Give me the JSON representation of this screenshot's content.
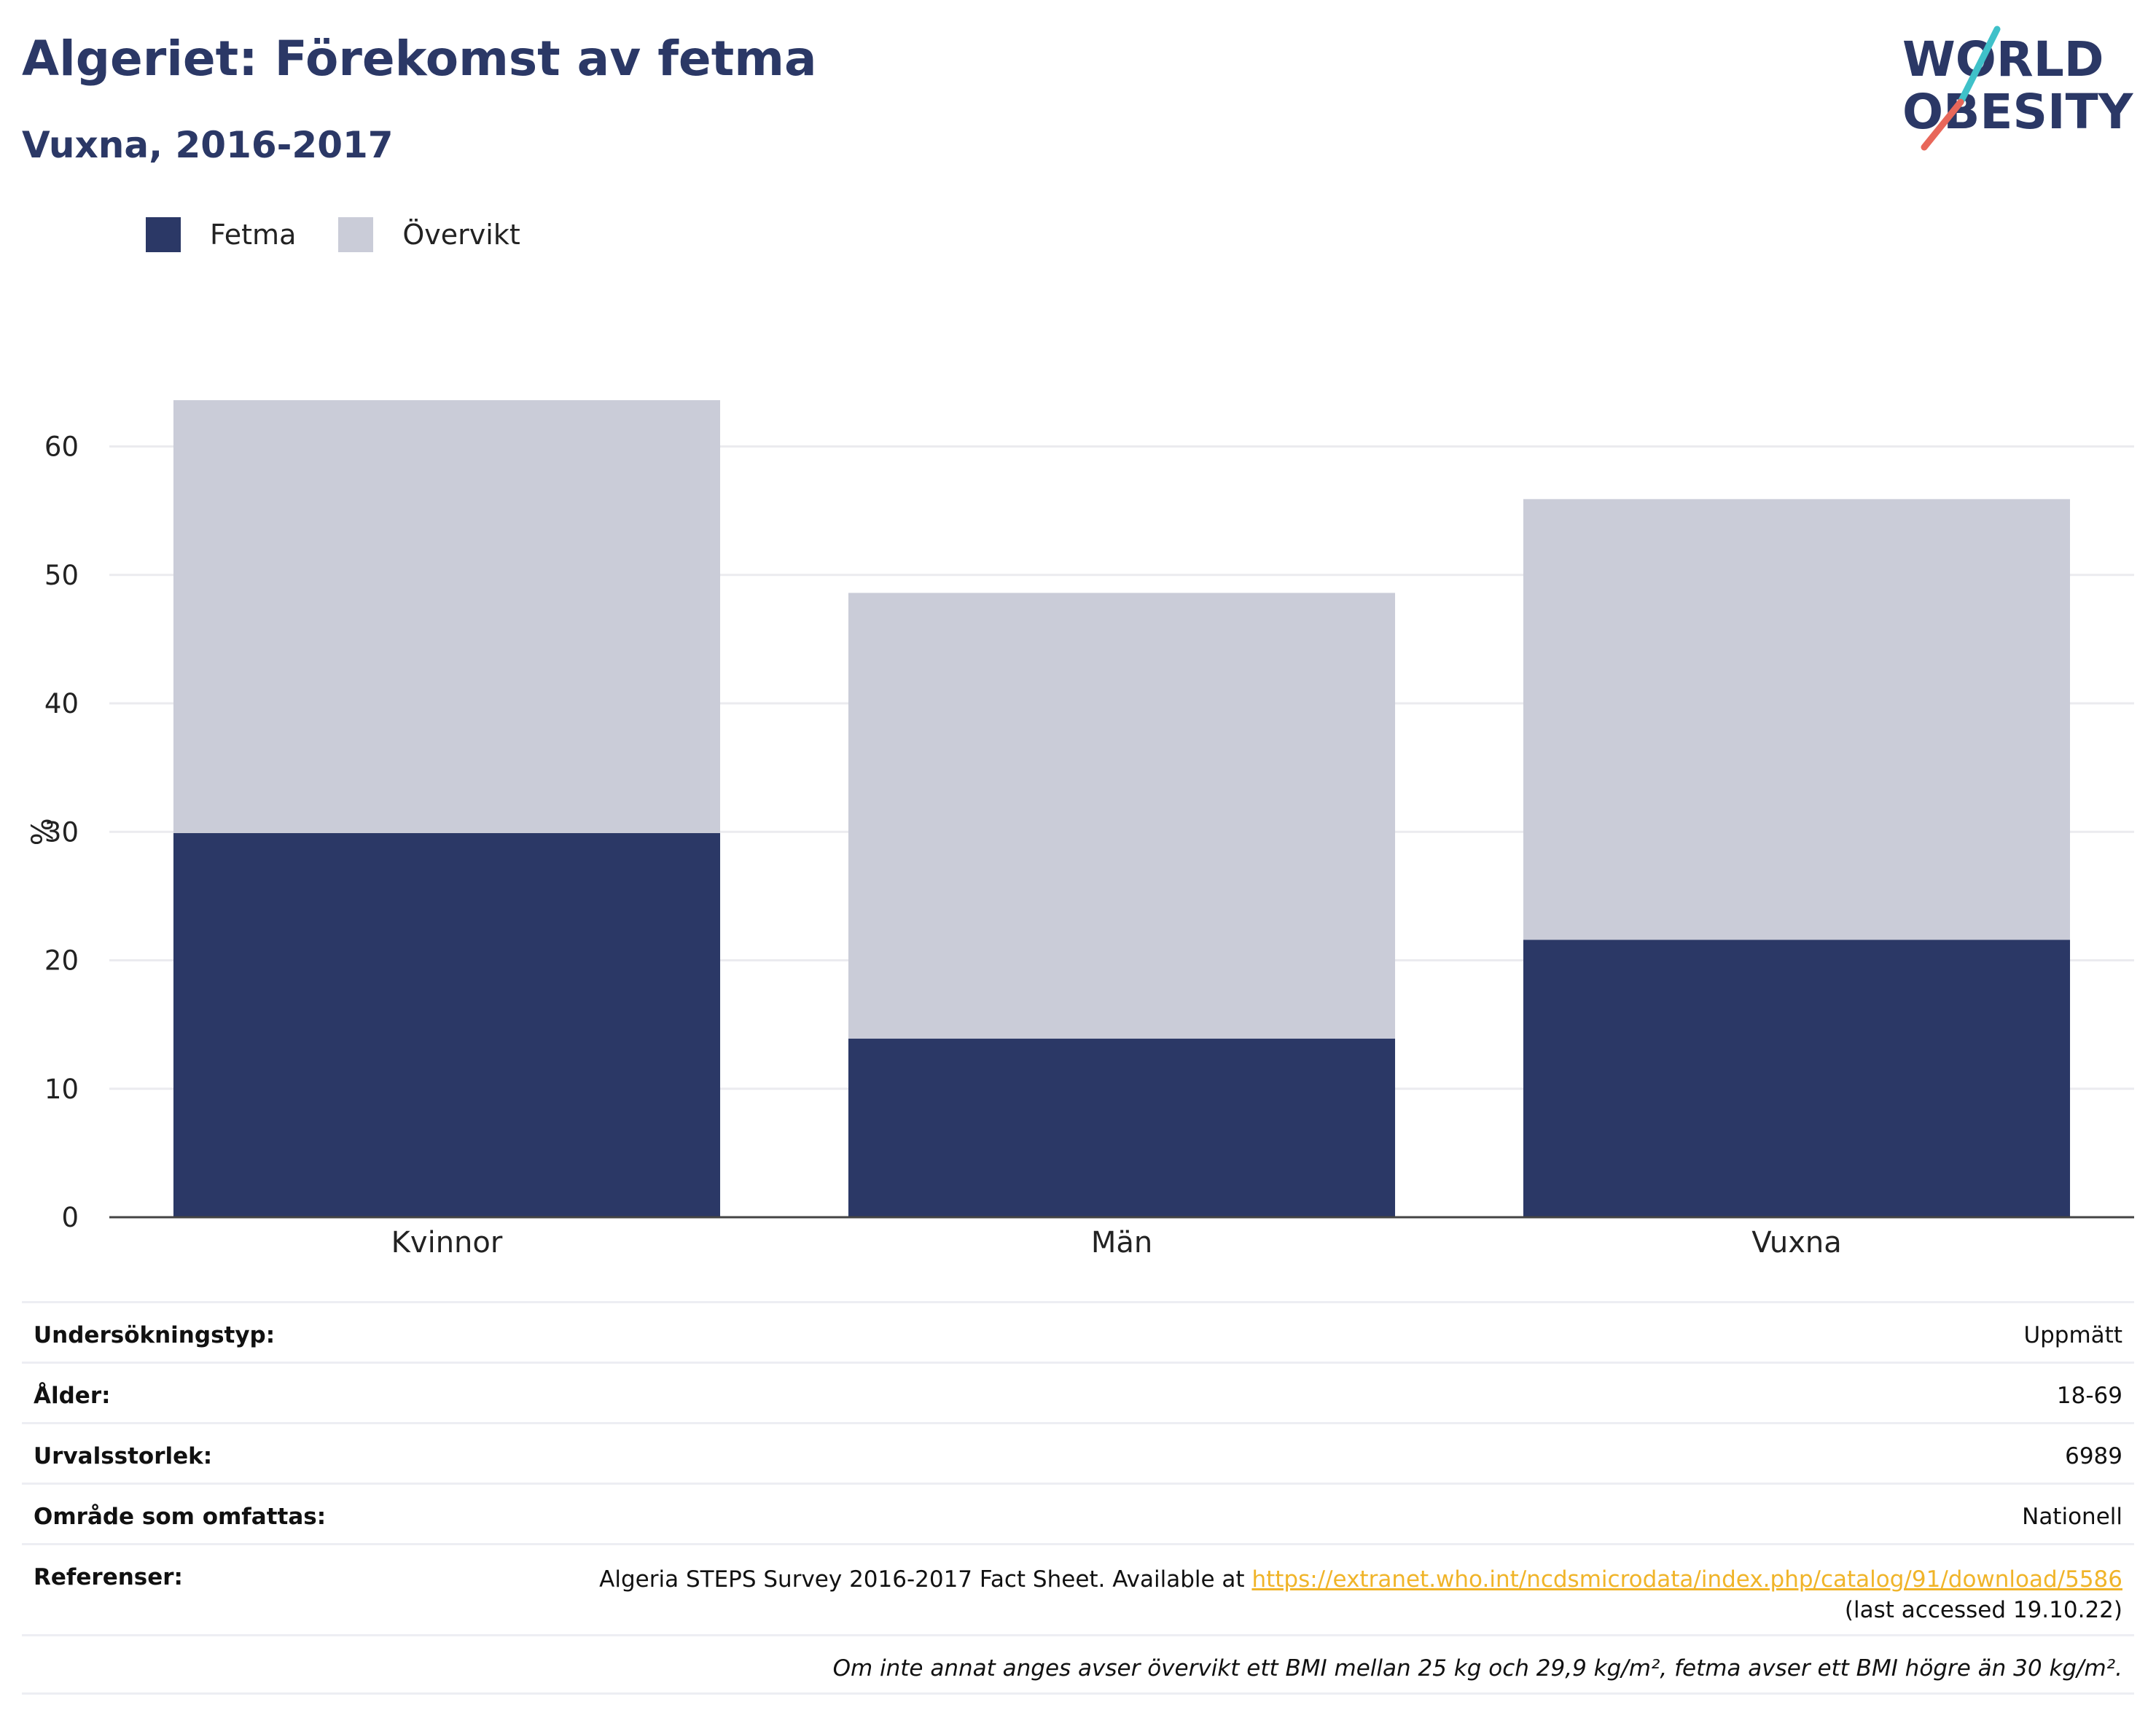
{
  "header": {
    "title": "Algeriet: Förekomst av fetma",
    "subtitle": "Vuxna, 2016-2017"
  },
  "logo": {
    "line1": "WORLD",
    "line2": "OBESITY",
    "slash_colors": [
      "#3fc1c9",
      "#e8675a"
    ]
  },
  "legend": {
    "items": [
      {
        "label": "Fetma",
        "color": "#2b3866"
      },
      {
        "label": "Övervikt",
        "color": "#caccd8"
      }
    ]
  },
  "chart_data": {
    "type": "bar",
    "stacked": true,
    "categories": [
      "Kvinnor",
      "Män",
      "Vuxna"
    ],
    "series": [
      {
        "name": "Fetma",
        "color": "#2b3866",
        "values": [
          29.9,
          13.9,
          21.6
        ]
      },
      {
        "name": "Övervikt",
        "color": "#caccd8",
        "values": [
          33.7,
          34.7,
          34.3
        ]
      }
    ],
    "ylabel": "%",
    "xlabel": "",
    "ylim": [
      0,
      64
    ],
    "yticks": [
      0,
      10,
      20,
      30,
      40,
      50,
      60
    ],
    "grid": true,
    "legend_position": "top-left"
  },
  "info": {
    "survey_type": {
      "label": "Undersökningstyp:",
      "value": "Uppmätt"
    },
    "age": {
      "label": "Ålder:",
      "value": "18-69"
    },
    "sample_size": {
      "label": "Urvalsstorlek:",
      "value": "6989"
    },
    "area": {
      "label": "Område som omfattas:",
      "value": "Nationell"
    },
    "references": {
      "label": "Referenser:",
      "text": "Algeria STEPS Survey 2016-2017 Fact Sheet. Available at ",
      "link": "https://extranet.who.int/ncdsmicrodata/index.php/catalog/91/download/5586",
      "accessed": "(last accessed 19.10.22)"
    },
    "note": "Om inte annat anges avser övervikt ett BMI mellan 25 kg och 29,9 kg/m², fetma avser ett BMI högre än 30 kg/m²."
  }
}
